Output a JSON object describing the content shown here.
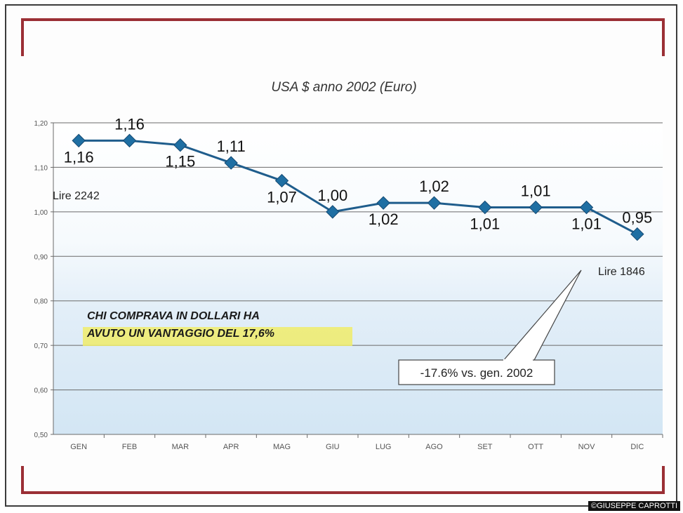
{
  "chart_data": {
    "type": "line",
    "title": "USA $ anno 2002 (Euro)",
    "xlabel": "",
    "ylabel": "",
    "categories": [
      "GEN",
      "FEB",
      "MAR",
      "APR",
      "MAG",
      "GIU",
      "LUG",
      "AGO",
      "SET",
      "OTT",
      "NOV",
      "DIC"
    ],
    "values": [
      1.16,
      1.16,
      1.15,
      1.11,
      1.07,
      1.0,
      1.02,
      1.02,
      1.01,
      1.01,
      1.01,
      0.95
    ],
    "data_labels": [
      "1,16",
      "1,16",
      "1,15",
      "1,11",
      "1,07",
      "1,00",
      "1,02",
      "1,02",
      "1,01",
      "1,01",
      "1,01",
      "0,95"
    ],
    "label_positions": [
      "below",
      "above",
      "below",
      "above",
      "below",
      "above",
      "below",
      "above",
      "below",
      "above",
      "below",
      "above"
    ],
    "ylim": [
      0.5,
      1.2
    ],
    "yticks": [
      0.5,
      0.6,
      0.7,
      0.8,
      0.9,
      1.0,
      1.1,
      1.2
    ],
    "ytick_labels": [
      "0,50",
      "0,60",
      "0,70",
      "0,80",
      "0,90",
      "1,00",
      "1,10",
      "1,20"
    ],
    "grid": true,
    "line_color": "#1f5d8c",
    "marker_color": "#1f6fa3",
    "frame_color": "#9b2f35",
    "highlight_color": "#f0ec6a",
    "annotations": {
      "start_note": "Lire 2242",
      "end_note": "Lire 1846",
      "callout": "-17.6% vs. gen. 2002",
      "message_line1": "CHI COMPRAVA IN DOLLARI HA",
      "message_line2": "AVUTO UN VANTAGGIO DEL 17,6%"
    }
  },
  "credit": "©GIUSEPPE CAPROTTI"
}
